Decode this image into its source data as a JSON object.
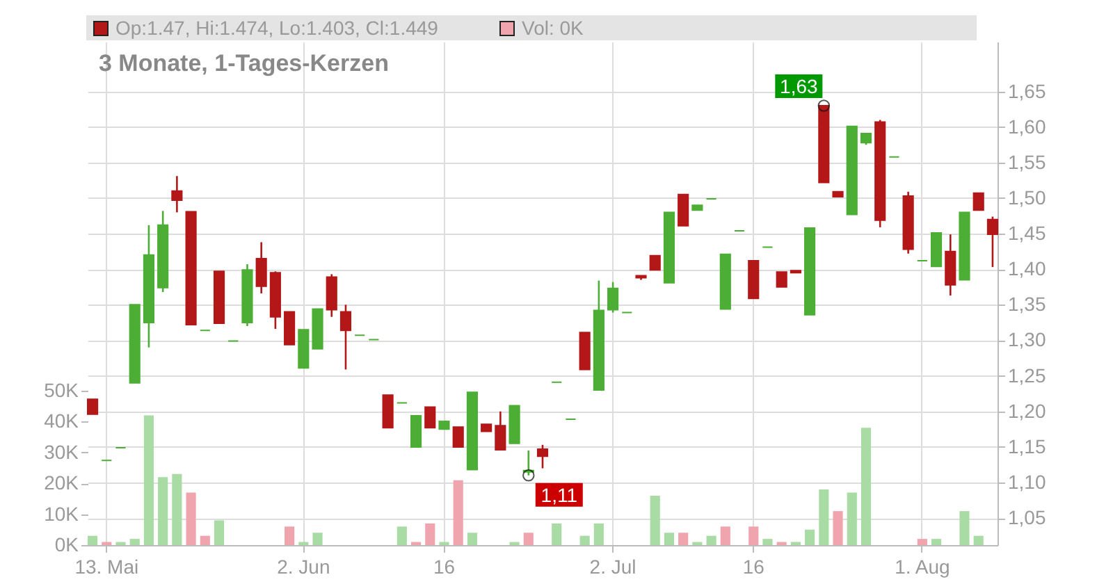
{
  "chart_data": {
    "type": "candlestick",
    "title": "3 Monate, 1-Tages-Kerzen",
    "categories": [
      null,
      "13. Mai",
      null,
      null,
      null,
      null,
      null,
      null,
      null,
      null,
      null,
      null,
      null,
      null,
      null,
      "2. Jun",
      null,
      null,
      null,
      null,
      null,
      null,
      null,
      null,
      null,
      "16",
      null,
      null,
      null,
      null,
      null,
      null,
      null,
      null,
      null,
      null,
      null,
      "2. Jul",
      null,
      null,
      null,
      null,
      null,
      null,
      null,
      null,
      null,
      "16",
      null,
      null,
      null,
      null,
      null,
      null,
      null,
      null,
      null,
      null,
      null,
      "1. Aug",
      null,
      null,
      null,
      null,
      null
    ],
    "ohlc": [
      [
        1.217,
        1.217,
        1.196,
        1.196
      ],
      [
        1.131,
        1.131,
        1.131,
        1.131
      ],
      [
        1.149,
        1.149,
        1.149,
        1.149
      ],
      [
        1.24,
        1.35,
        1.24,
        1.35
      ],
      [
        1.325,
        1.462,
        1.29,
        1.42
      ],
      [
        1.374,
        1.482,
        1.368,
        1.462
      ],
      [
        1.51,
        1.531,
        1.48,
        1.497
      ],
      [
        1.481,
        1.481,
        1.322,
        1.322
      ],
      [
        1.314,
        1.314,
        1.314,
        1.314
      ],
      [
        1.397,
        1.397,
        1.324,
        1.324
      ],
      [
        1.299,
        1.299,
        1.299,
        1.299
      ],
      [
        1.325,
        1.407,
        1.32,
        1.399
      ],
      [
        1.415,
        1.438,
        1.366,
        1.376
      ],
      [
        1.395,
        1.397,
        1.316,
        1.333
      ],
      [
        1.34,
        1.34,
        1.294,
        1.294
      ],
      [
        1.261,
        1.315,
        1.261,
        1.315
      ],
      [
        1.288,
        1.344,
        1.288,
        1.344
      ],
      [
        1.389,
        1.393,
        1.333,
        1.343
      ],
      [
        1.34,
        1.35,
        1.259,
        1.314
      ],
      [
        1.307,
        1.307,
        1.307,
        1.307
      ],
      [
        1.301,
        1.301,
        1.301,
        1.301
      ],
      [
        1.223,
        1.223,
        1.177,
        1.177
      ],
      [
        1.212,
        1.212,
        1.212,
        1.212
      ],
      [
        1.15,
        1.194,
        1.15,
        1.194
      ],
      [
        1.206,
        1.206,
        1.177,
        1.177
      ],
      [
        1.175,
        1.186,
        1.175,
        1.186
      ],
      [
        1.178,
        1.178,
        1.15,
        1.15
      ],
      [
        1.118,
        1.227,
        1.118,
        1.227
      ],
      [
        1.182,
        1.182,
        1.172,
        1.172
      ],
      [
        1.18,
        1.2,
        1.146,
        1.146
      ],
      [
        1.155,
        1.208,
        1.155,
        1.208
      ],
      [
        1.115,
        1.145,
        1.11,
        1.117
      ],
      [
        1.147,
        1.153,
        1.12,
        1.137
      ],
      [
        1.241,
        1.241,
        1.241,
        1.241
      ],
      [
        1.189,
        1.189,
        1.189,
        1.189
      ],
      [
        1.311,
        1.311,
        1.259,
        1.259
      ],
      [
        1.23,
        1.384,
        1.23,
        1.342
      ],
      [
        1.343,
        1.382,
        1.339,
        1.373
      ],
      [
        1.339,
        1.339,
        1.339,
        1.339
      ],
      [
        1.391,
        1.391,
        1.385,
        1.388
      ],
      [
        1.419,
        1.419,
        1.399,
        1.399
      ],
      [
        1.381,
        1.48,
        1.381,
        1.48
      ],
      [
        1.505,
        1.505,
        1.461,
        1.461
      ],
      [
        1.483,
        1.49,
        1.483,
        1.49
      ],
      [
        1.499,
        1.499,
        1.499,
        1.499
      ],
      [
        1.344,
        1.421,
        1.344,
        1.421
      ],
      [
        1.454,
        1.454,
        1.454,
        1.454
      ],
      [
        1.412,
        1.412,
        1.359,
        1.359
      ],
      [
        1.431,
        1.431,
        1.431,
        1.431
      ],
      [
        1.396,
        1.396,
        1.375,
        1.375
      ],
      [
        1.398,
        1.398,
        1.395,
        1.395
      ],
      [
        1.336,
        1.458,
        1.336,
        1.458
      ],
      [
        1.63,
        1.63,
        1.522,
        1.522
      ],
      [
        1.509,
        1.509,
        1.502,
        1.502
      ],
      [
        1.477,
        1.601,
        1.477,
        1.601
      ],
      [
        1.578,
        1.591,
        1.575,
        1.591
      ],
      [
        1.607,
        1.61,
        1.459,
        1.469
      ],
      [
        1.558,
        1.558,
        1.558,
        1.558
      ],
      [
        1.503,
        1.509,
        1.422,
        1.428
      ],
      [
        1.412,
        1.412,
        1.412,
        1.412
      ],
      [
        1.404,
        1.451,
        1.404,
        1.451
      ],
      [
        1.425,
        1.449,
        1.363,
        1.378
      ],
      [
        1.385,
        1.48,
        1.385,
        1.48
      ],
      [
        1.507,
        1.507,
        1.483,
        1.483
      ],
      [
        1.47,
        1.474,
        1.403,
        1.449
      ]
    ],
    "colors": [
      "#b31717",
      "#4cae34",
      "#4cae34",
      "#4cae34",
      "#4cae34",
      "#4cae34",
      "#b31717",
      "#b31717",
      "#4cae34",
      "#b31717",
      "#4cae34",
      "#4cae34",
      "#b31717",
      "#b31717",
      "#b31717",
      "#4cae34",
      "#4cae34",
      "#b31717",
      "#b31717",
      "#4cae34",
      "#4cae34",
      "#b31717",
      "#4cae34",
      "#4cae34",
      "#b31717",
      "#4cae34",
      "#b31717",
      "#4cae34",
      "#b31717",
      "#b31717",
      "#4cae34",
      "#4cae34",
      "#b31717",
      "#4cae34",
      "#4cae34",
      "#b31717",
      "#4cae34",
      "#4cae34",
      "#4cae34",
      "#b31717",
      "#b31717",
      "#4cae34",
      "#b31717",
      "#4cae34",
      "#4cae34",
      "#4cae34",
      "#4cae34",
      "#b31717",
      "#4cae34",
      "#b31717",
      "#b31717",
      "#4cae34",
      "#b31717",
      "#b31717",
      "#4cae34",
      "#4cae34",
      "#b31717",
      "#4cae34",
      "#b31717",
      "#4cae34",
      "#4cae34",
      "#b31717",
      "#4cae34",
      "#b31717",
      "#b31717"
    ],
    "series": [
      {
        "type": "bar",
        "axis": "y2",
        "values": [
          3,
          1,
          1,
          2,
          42,
          22,
          23,
          17,
          3,
          8,
          0,
          0,
          0,
          0,
          6,
          1,
          4,
          0,
          0,
          0,
          0,
          0,
          6,
          1,
          7,
          1,
          21,
          4,
          0,
          0,
          1,
          4,
          0,
          7,
          0,
          3,
          7,
          0,
          0,
          0,
          16,
          4,
          4,
          1,
          3,
          6,
          0,
          6,
          2,
          1,
          1,
          5,
          18,
          11,
          17,
          38,
          0,
          0,
          0,
          2,
          2,
          0,
          11,
          3,
          0
        ],
        "colors": [
          "#a9dca5",
          "#f0a5ae",
          "#a9dca5",
          "#a9dca5",
          "#a9dca5",
          "#a9dca5",
          "#a9dca5",
          "#f0a5ae",
          "#f0a5ae",
          "#a9dca5",
          "#a9dca5",
          "#a9dca5",
          "#a9dca5",
          "#a9dca5",
          "#f0a5ae",
          "#a9dca5",
          "#a9dca5",
          "#a9dca5",
          "#a9dca5",
          "#a9dca5",
          "#a9dca5",
          "#a9dca5",
          "#a9dca5",
          "#f0a5ae",
          "#f0a5ae",
          "#a9dca5",
          "#f0a5ae",
          "#a9dca5",
          "#a9dca5",
          "#a9dca5",
          "#a9dca5",
          "#f0a5ae",
          "#a9dca5",
          "#a9dca5",
          "#a9dca5",
          "#a9dca5",
          "#a9dca5",
          "#a9dca5",
          "#a9dca5",
          "#a9dca5",
          "#a9dca5",
          "#a9dca5",
          "#f0a5ae",
          "#a9dca5",
          "#a9dca5",
          "#f0a5ae",
          "#a9dca5",
          "#f0a5ae",
          "#a9dca5",
          "#f0a5ae",
          "#a9dca5",
          "#a9dca5",
          "#a9dca5",
          "#f0a5ae",
          "#a9dca5",
          "#a9dca5",
          "#a9dca5",
          "#a9dca5",
          "#a9dca5",
          "#f0a5ae",
          "#a9dca5",
          "#a9dca5",
          "#a9dca5",
          "#a9dca5",
          "#f0a5ae"
        ]
      }
    ],
    "ylim": [
      1.012,
      1.72
    ],
    "yticks": [
      {
        "value": 1.05,
        "label": "1,05"
      },
      {
        "value": 1.1,
        "label": "1,10"
      },
      {
        "value": 1.15,
        "label": "1,15"
      },
      {
        "value": 1.2,
        "label": "1,20"
      },
      {
        "value": 1.25,
        "label": "1,25"
      },
      {
        "value": 1.3,
        "label": "1,30"
      },
      {
        "value": 1.35,
        "label": "1,35"
      },
      {
        "value": 1.4,
        "label": "1,40"
      },
      {
        "value": 1.45,
        "label": "1,45"
      },
      {
        "value": 1.5,
        "label": "1,50"
      },
      {
        "value": 1.55,
        "label": "1,55"
      },
      {
        "value": 1.6,
        "label": "1,60"
      },
      {
        "value": 1.65,
        "label": "1,65"
      }
    ],
    "y2lim": [
      0,
      163
    ],
    "y2ticks": [
      {
        "value": 0,
        "label": "0K"
      },
      {
        "value": 10,
        "label": "10K"
      },
      {
        "value": 20,
        "label": "20K"
      },
      {
        "value": 30,
        "label": "30K"
      },
      {
        "value": 40,
        "label": "40K"
      },
      {
        "value": 50,
        "label": "50K"
      }
    ],
    "grid": true,
    "annotations": [
      "Op:1.47, Hi:1.474, Lo:1.403, Cl:1.449",
      "Vol: 0K",
      "1,63",
      "1,11"
    ]
  }
}
